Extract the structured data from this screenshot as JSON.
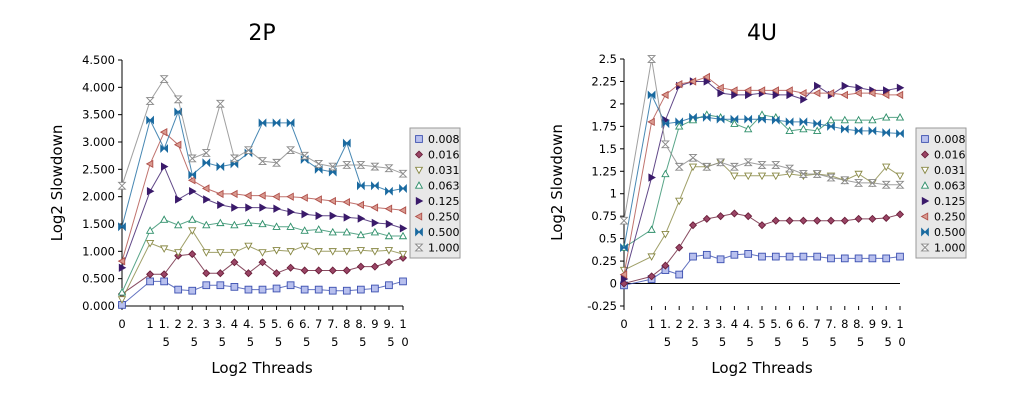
{
  "chart_data": [
    {
      "type": "line",
      "title": "2P",
      "xlabel": "Log2 Threads",
      "ylabel": "Log2 Slowdown",
      "xlim": [
        0,
        10
      ],
      "ylim": [
        0,
        4.5
      ],
      "y_ticks": [
        "0.000",
        "0.500",
        "1.000",
        "1.500",
        "2.000",
        "2.500",
        "3.000",
        "3.500",
        "4.000",
        "4.500"
      ],
      "x_ticks": [
        {
          "top": "0",
          "bottom": ""
        },
        {
          "top": "1",
          "bottom": ""
        },
        {
          "top": "1.",
          "bottom": "5"
        },
        {
          "top": "2",
          "bottom": ""
        },
        {
          "top": "2.",
          "bottom": "5"
        },
        {
          "top": "3",
          "bottom": ""
        },
        {
          "top": "3.",
          "bottom": "5"
        },
        {
          "top": "4",
          "bottom": ""
        },
        {
          "top": "4.",
          "bottom": "5"
        },
        {
          "top": "5",
          "bottom": ""
        },
        {
          "top": "5.",
          "bottom": "5"
        },
        {
          "top": "6",
          "bottom": ""
        },
        {
          "top": "6.",
          "bottom": "5"
        },
        {
          "top": "7",
          "bottom": ""
        },
        {
          "top": "7.",
          "bottom": "5"
        },
        {
          "top": "8",
          "bottom": ""
        },
        {
          "top": "8.",
          "bottom": "5"
        },
        {
          "top": "9",
          "bottom": ""
        },
        {
          "top": "9.",
          "bottom": "5"
        },
        {
          "top": "1",
          "bottom": "0"
        }
      ],
      "x": [
        0,
        1,
        1.5,
        2,
        2.5,
        3,
        3.5,
        4,
        4.5,
        5,
        5.5,
        6,
        6.5,
        7,
        7.5,
        8,
        8.5,
        9,
        9.5,
        10
      ],
      "series": [
        {
          "name": "0.008",
          "values": [
            0.02,
            0.45,
            0.45,
            0.3,
            0.28,
            0.38,
            0.38,
            0.35,
            0.3,
            0.3,
            0.32,
            0.38,
            0.3,
            0.3,
            0.28,
            0.28,
            0.3,
            0.32,
            0.38,
            0.45
          ]
        },
        {
          "name": "0.016",
          "values": [
            0.22,
            0.58,
            0.58,
            0.92,
            0.95,
            0.6,
            0.6,
            0.8,
            0.6,
            0.8,
            0.6,
            0.7,
            0.65,
            0.65,
            0.65,
            0.65,
            0.72,
            0.72,
            0.8,
            0.88
          ]
        },
        {
          "name": "0.031",
          "values": [
            0.12,
            1.15,
            1.05,
            0.98,
            1.38,
            0.98,
            0.98,
            0.98,
            1.1,
            0.98,
            1.02,
            1.0,
            1.1,
            1.0,
            1.0,
            1.0,
            1.02,
            1.0,
            1.02,
            0.95
          ]
        },
        {
          "name": "0.063",
          "values": [
            0.25,
            1.38,
            1.58,
            1.48,
            1.58,
            1.48,
            1.52,
            1.48,
            1.52,
            1.5,
            1.45,
            1.45,
            1.38,
            1.4,
            1.35,
            1.35,
            1.3,
            1.35,
            1.28,
            1.28
          ]
        },
        {
          "name": "0.125",
          "values": [
            0.7,
            2.1,
            2.55,
            1.95,
            2.1,
            1.95,
            1.85,
            1.8,
            1.8,
            1.8,
            1.78,
            1.72,
            1.68,
            1.65,
            1.65,
            1.62,
            1.6,
            1.52,
            1.5,
            1.42
          ]
        },
        {
          "name": "0.250",
          "values": [
            0.82,
            2.6,
            3.18,
            2.95,
            2.3,
            2.15,
            2.05,
            2.05,
            2.02,
            2.02,
            2.0,
            2.0,
            1.98,
            1.95,
            1.92,
            1.9,
            1.85,
            1.8,
            1.78,
            1.75
          ]
        },
        {
          "name": "0.500",
          "values": [
            1.45,
            3.4,
            2.88,
            3.55,
            2.4,
            2.62,
            2.55,
            2.6,
            2.8,
            3.35,
            3.35,
            3.35,
            2.68,
            2.5,
            2.45,
            2.98,
            2.2,
            2.2,
            2.1,
            2.15
          ]
        },
        {
          "name": "1.000",
          "values": [
            2.2,
            3.75,
            4.15,
            3.78,
            2.7,
            2.8,
            3.7,
            2.7,
            2.85,
            2.65,
            2.62,
            2.85,
            2.75,
            2.6,
            2.55,
            2.58,
            2.58,
            2.55,
            2.52,
            2.42
          ]
        }
      ],
      "legend_position": "right"
    },
    {
      "type": "line",
      "title": "4U",
      "xlabel": "Log2 Threads",
      "ylabel": "Log2 Slowdown",
      "xlim": [
        0,
        10
      ],
      "ylim": [
        -0.25,
        2.5
      ],
      "y_ticks": [
        "-0.25",
        "0",
        "0.25",
        "0.5",
        "0.75",
        "1",
        "1.25",
        "1.5",
        "1.75",
        "2",
        "2.25",
        "2.5"
      ],
      "x_ticks": [
        {
          "top": "0",
          "bottom": ""
        },
        {
          "top": "1",
          "bottom": ""
        },
        {
          "top": "1.",
          "bottom": "5"
        },
        {
          "top": "2",
          "bottom": ""
        },
        {
          "top": "2.",
          "bottom": "5"
        },
        {
          "top": "3",
          "bottom": ""
        },
        {
          "top": "3.",
          "bottom": "5"
        },
        {
          "top": "4",
          "bottom": ""
        },
        {
          "top": "4.",
          "bottom": "5"
        },
        {
          "top": "5",
          "bottom": ""
        },
        {
          "top": "5.",
          "bottom": "5"
        },
        {
          "top": "6",
          "bottom": ""
        },
        {
          "top": "6.",
          "bottom": "5"
        },
        {
          "top": "7",
          "bottom": ""
        },
        {
          "top": "7.",
          "bottom": "5"
        },
        {
          "top": "8",
          "bottom": ""
        },
        {
          "top": "8.",
          "bottom": "5"
        },
        {
          "top": "9",
          "bottom": ""
        },
        {
          "top": "9.",
          "bottom": "5"
        },
        {
          "top": "1",
          "bottom": "0"
        }
      ],
      "x": [
        0,
        1,
        1.5,
        2,
        2.5,
        3,
        3.5,
        4,
        4.5,
        5,
        5.5,
        6,
        6.5,
        7,
        7.5,
        8,
        8.5,
        9,
        9.5,
        10
      ],
      "series": [
        {
          "name": "0.008",
          "values": [
            -0.02,
            0.05,
            0.15,
            0.1,
            0.3,
            0.32,
            0.27,
            0.32,
            0.33,
            0.3,
            0.3,
            0.3,
            0.3,
            0.3,
            0.28,
            0.28,
            0.28,
            0.28,
            0.28,
            0.3
          ]
        },
        {
          "name": "0.016",
          "values": [
            0.0,
            0.08,
            0.2,
            0.4,
            0.65,
            0.72,
            0.75,
            0.78,
            0.75,
            0.65,
            0.7,
            0.7,
            0.7,
            0.7,
            0.7,
            0.7,
            0.72,
            0.72,
            0.73,
            0.77
          ]
        },
        {
          "name": "0.031",
          "values": [
            0.15,
            0.3,
            0.55,
            0.92,
            1.3,
            1.3,
            1.35,
            1.2,
            1.2,
            1.2,
            1.2,
            1.22,
            1.2,
            1.22,
            1.2,
            1.15,
            1.22,
            1.12,
            1.3,
            1.2
          ]
        },
        {
          "name": "0.063",
          "values": [
            0.4,
            0.6,
            1.22,
            1.75,
            1.82,
            1.88,
            1.85,
            1.78,
            1.72,
            1.88,
            1.85,
            1.7,
            1.72,
            1.7,
            1.82,
            1.82,
            1.82,
            1.82,
            1.85,
            1.85
          ]
        },
        {
          "name": "0.125",
          "values": [
            0.05,
            1.18,
            1.82,
            2.2,
            2.25,
            2.25,
            2.12,
            2.1,
            2.1,
            2.12,
            2.1,
            2.1,
            2.05,
            2.2,
            2.1,
            2.2,
            2.18,
            2.15,
            2.15,
            2.18
          ]
        },
        {
          "name": "0.250",
          "values": [
            0.1,
            1.8,
            2.1,
            2.22,
            2.25,
            2.3,
            2.18,
            2.15,
            2.15,
            2.15,
            2.15,
            2.15,
            2.12,
            2.12,
            2.12,
            2.1,
            2.12,
            2.12,
            2.1,
            2.1
          ]
        },
        {
          "name": "0.500",
          "values": [
            0.4,
            2.1,
            1.78,
            1.8,
            1.85,
            1.85,
            1.83,
            1.83,
            1.83,
            1.83,
            1.82,
            1.8,
            1.8,
            1.78,
            1.75,
            1.72,
            1.7,
            1.7,
            1.68,
            1.67
          ]
        },
        {
          "name": "1.000",
          "values": [
            0.7,
            2.5,
            1.55,
            1.3,
            1.4,
            1.3,
            1.35,
            1.3,
            1.35,
            1.32,
            1.32,
            1.28,
            1.22,
            1.22,
            1.18,
            1.15,
            1.12,
            1.12,
            1.1,
            1.1
          ]
        }
      ],
      "legend_position": "right"
    }
  ],
  "series_colors": [
    "#3b4fb0",
    "#6b1f3a",
    "#888844",
    "#2e8f6a",
    "#3a1a6a",
    "#b0504a",
    "#1a6aa0",
    "#888888"
  ],
  "series_fills": [
    "#b8c0ee",
    "#9a4566",
    "#ffffff",
    "#ffffff",
    "#3a1a6a",
    "#d99a90",
    "#1a6aa0",
    "#ffffff"
  ],
  "marker_types": [
    "square",
    "diamond",
    "tri-down",
    "tri-up",
    "tri-right",
    "tri-left",
    "bowtie-h",
    "bowtie-v"
  ]
}
